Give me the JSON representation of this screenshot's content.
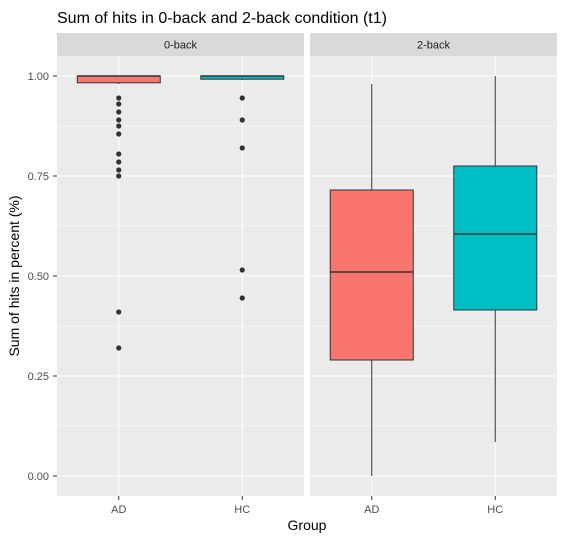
{
  "chart_data": {
    "type": "boxplot",
    "title": "Sum of hits in 0-back and 2-back condition (t1)",
    "xlabel": "Group",
    "ylabel": "Sum of hits in percent (%)",
    "ylim": [
      -0.05,
      1.05
    ],
    "y_ticks": [
      0.0,
      0.25,
      0.5,
      0.75,
      1.0
    ],
    "y_tick_labels": [
      "0.00",
      "0.25",
      "0.50",
      "0.75",
      "1.00"
    ],
    "categories": [
      "AD",
      "HC"
    ],
    "colors": {
      "AD": "#F8766D",
      "HC": "#00BFC4"
    },
    "grid": true,
    "facets": [
      {
        "label": "0-back",
        "boxes": [
          {
            "group": "AD",
            "lower_whisker": 0.98,
            "q1": 0.983,
            "median": 1.0,
            "q3": 1.0,
            "upper_whisker": 1.0,
            "outliers": [
              0.945,
              0.93,
              0.91,
              0.89,
              0.875,
              0.855,
              0.805,
              0.785,
              0.765,
              0.75,
              0.41,
              0.32
            ]
          },
          {
            "group": "HC",
            "lower_whisker": 0.99,
            "q1": 0.992,
            "median": 1.0,
            "q3": 1.0,
            "upper_whisker": 1.0,
            "outliers": [
              0.945,
              0.89,
              0.82,
              0.515,
              0.445
            ]
          }
        ]
      },
      {
        "label": "2-back",
        "boxes": [
          {
            "group": "AD",
            "lower_whisker": 0.0,
            "q1": 0.29,
            "median": 0.51,
            "q3": 0.715,
            "upper_whisker": 0.98,
            "outliers": []
          },
          {
            "group": "HC",
            "lower_whisker": 0.085,
            "q1": 0.415,
            "median": 0.605,
            "q3": 0.775,
            "upper_whisker": 1.0,
            "outliers": []
          }
        ]
      }
    ]
  }
}
